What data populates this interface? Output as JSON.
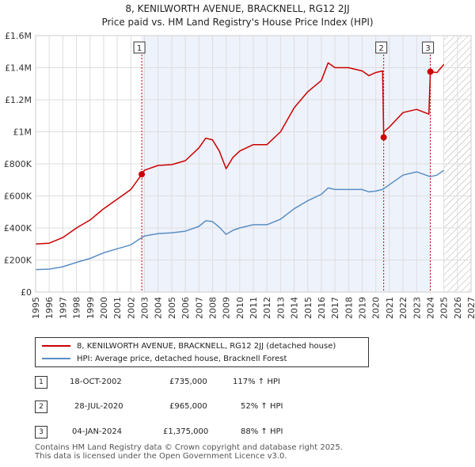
{
  "title_line1": "8, KENILWORTH AVENUE, BRACKNELL, RG12 2JJ",
  "title_line2": "Price paid vs. HM Land Registry's House Price Index (HPI)",
  "chart_data": {
    "type": "line",
    "xlim": [
      1995,
      2027
    ],
    "ylim": [
      0,
      1600000
    ],
    "yticks": [
      0,
      200000,
      400000,
      600000,
      800000,
      1000000,
      1200000,
      1400000,
      1600000
    ],
    "ytick_labels": [
      "£0",
      "£200K",
      "£400K",
      "£600K",
      "£800K",
      "£1M",
      "£1.2M",
      "£1.4M",
      "£1.6M"
    ],
    "xticks": [
      1995,
      1996,
      1997,
      1998,
      1999,
      2000,
      2001,
      2002,
      2003,
      2004,
      2005,
      2006,
      2007,
      2008,
      2009,
      2010,
      2011,
      2012,
      2013,
      2014,
      2015,
      2016,
      2017,
      2018,
      2019,
      2020,
      2021,
      2022,
      2023,
      2024,
      2025,
      2026,
      2027
    ],
    "grid": true,
    "shaded_ownership_region": [
      2002.8,
      2024.0
    ],
    "hatched_future_region": [
      2025.0,
      2027
    ],
    "series": [
      {
        "name": "8, KENILWORTH AVENUE, BRACKNELL, RG12 2JJ (detached house)",
        "color": "#cc0000",
        "x": [
          1995,
          1996,
          1997,
          1998,
          1999,
          2000,
          2001,
          2002,
          2002.8,
          2003,
          2004,
          2005,
          2006,
          2007,
          2007.5,
          2008,
          2008.5,
          2009,
          2009.5,
          2010,
          2011,
          2012,
          2013,
          2014,
          2015,
          2016,
          2016.5,
          2017,
          2018,
          2019,
          2019.5,
          2020,
          2020.5,
          2020.58,
          2020.6,
          2021,
          2022,
          2023,
          2023.9,
          2024.01,
          2024.5,
          2025
        ],
        "values": [
          300000,
          305000,
          340000,
          400000,
          450000,
          520000,
          580000,
          640000,
          735000,
          760000,
          790000,
          795000,
          820000,
          900000,
          960000,
          950000,
          880000,
          770000,
          840000,
          880000,
          920000,
          920000,
          1000000,
          1150000,
          1250000,
          1320000,
          1430000,
          1400000,
          1400000,
          1380000,
          1350000,
          1370000,
          1380000,
          965000,
          1000000,
          1030000,
          1120000,
          1140000,
          1110000,
          1375000,
          1370000,
          1420000
        ]
      },
      {
        "name": "HPI: Average price, detached house, Bracknell Forest",
        "color": "#5b8ec4",
        "x": [
          1995,
          1996,
          1997,
          1998,
          1999,
          2000,
          2001,
          2002,
          2002.8,
          2003,
          2004,
          2005,
          2006,
          2007,
          2007.5,
          2008,
          2008.5,
          2009,
          2009.5,
          2010,
          2011,
          2012,
          2013,
          2014,
          2015,
          2016,
          2016.5,
          2017,
          2018,
          2019,
          2019.5,
          2020,
          2020.5,
          2021,
          2022,
          2023,
          2024,
          2024.5,
          2025
        ],
        "values": [
          140000,
          143000,
          158000,
          185000,
          210000,
          245000,
          270000,
          295000,
          340000,
          350000,
          365000,
          370000,
          380000,
          410000,
          445000,
          440000,
          405000,
          360000,
          385000,
          400000,
          420000,
          420000,
          455000,
          520000,
          570000,
          610000,
          650000,
          640000,
          640000,
          640000,
          625000,
          630000,
          640000,
          670000,
          730000,
          750000,
          720000,
          730000,
          760000
        ]
      }
    ],
    "sale_markers": [
      {
        "label": "1",
        "x": 2002.8,
        "value": 735000
      },
      {
        "label": "2",
        "x": 2020.58,
        "value": 965000
      },
      {
        "label": "3",
        "x": 2024.01,
        "value": 1375000
      }
    ]
  },
  "legend": {
    "property_label": "8, KENILWORTH AVENUE, BRACKNELL, RG12 2JJ (detached house)",
    "hpi_label": "HPI: Average price, detached house, Bracknell Forest",
    "property_color": "#cc0000",
    "hpi_color": "#5b8ec4"
  },
  "transactions": [
    {
      "num": "1",
      "date": "18-OCT-2002",
      "price": "£735,000",
      "hpi": "117% ↑ HPI"
    },
    {
      "num": "2",
      "date": "28-JUL-2020",
      "price": "£965,000",
      "hpi": "52% ↑ HPI"
    },
    {
      "num": "3",
      "date": "04-JAN-2024",
      "price": "£1,375,000",
      "hpi": "88% ↑ HPI"
    }
  ],
  "footer_line1": "Contains HM Land Registry data © Crown copyright and database right 2025.",
  "footer_line2": "This data is licensed under the Open Government Licence v3.0."
}
